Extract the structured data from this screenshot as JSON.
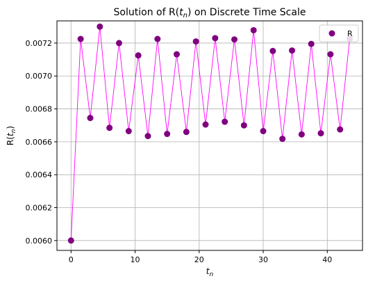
{
  "chart_data": {
    "type": "line",
    "title_main": "Solution of R(",
    "title_var": "t",
    "title_sub": "n",
    "title_end": ") on Discrete Time Scale",
    "xlabel_var": "t",
    "xlabel_sub": "n",
    "ylabel_main": "R(",
    "ylabel_var": "t",
    "ylabel_sub": "n",
    "ylabel_end": ")",
    "xlim": [
      -2.2,
      45.5
    ],
    "ylim": [
      0.00594,
      0.007335
    ],
    "xticks": [
      0,
      10,
      20,
      30,
      40
    ],
    "xtick_labels": [
      "0",
      "10",
      "20",
      "30",
      "40"
    ],
    "yticks": [
      0.006,
      0.0062,
      0.0064,
      0.0066,
      0.0068,
      0.007,
      0.0072
    ],
    "ytick_labels": [
      "0.0060",
      "0.0062",
      "0.0064",
      "0.0066",
      "0.0068",
      "0.0070",
      "0.0072"
    ],
    "grid": true,
    "legend_position": "top-right",
    "series": [
      {
        "name": "R",
        "marker_color": "#800080",
        "line_color": "#ff00ff",
        "x": [
          0,
          1.5,
          3,
          4.5,
          6,
          7.5,
          9,
          10.5,
          12,
          13.5,
          15,
          16.5,
          18,
          19.5,
          21,
          22.5,
          24,
          25.5,
          27,
          28.5,
          30,
          31.5,
          33,
          34.5,
          36,
          37.5,
          39,
          40.5,
          42,
          43.5
        ],
        "y": [
          0.006,
          0.007225,
          0.006745,
          0.0073,
          0.006685,
          0.0072,
          0.006665,
          0.007125,
          0.006635,
          0.007225,
          0.006648,
          0.007132,
          0.00666,
          0.00721,
          0.006705,
          0.00723,
          0.006722,
          0.007222,
          0.0067,
          0.007278,
          0.006665,
          0.007152,
          0.006618,
          0.007155,
          0.006645,
          0.007195,
          0.006652,
          0.007132,
          0.006675,
          0.007225
        ]
      }
    ]
  }
}
